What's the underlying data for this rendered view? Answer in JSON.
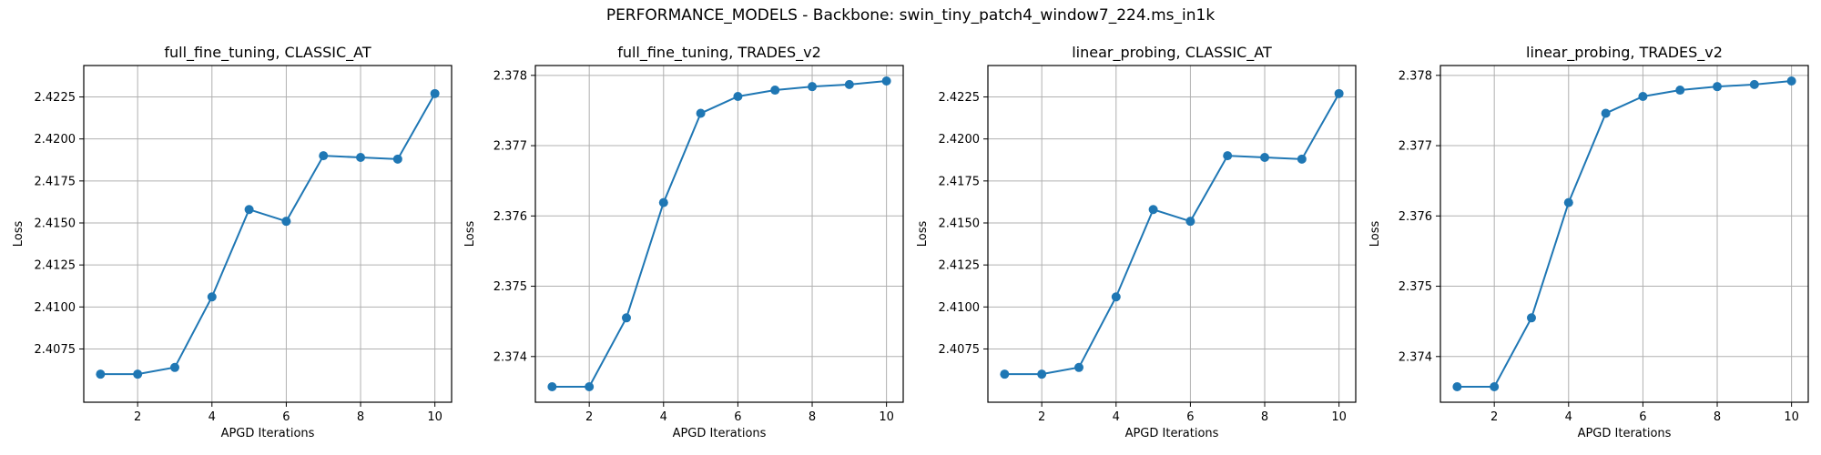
{
  "figure": {
    "title": "PERFORMANCE_MODELS - Backbone: swin_tiny_patch4_window7_224.ms_in1k"
  },
  "colors": {
    "line": "#1f77b4",
    "grid": "#b0b0b0",
    "axes": "#000000"
  },
  "chart_data": [
    {
      "type": "line",
      "title": "full_fine_tuning, CLASSIC_AT",
      "xlabel": "APGD Iterations",
      "ylabel": "Loss",
      "x": [
        1,
        2,
        3,
        4,
        5,
        6,
        7,
        8,
        9,
        10
      ],
      "series": [
        {
          "values": [
            2.406,
            2.406,
            2.4064,
            2.4106,
            2.4158,
            2.4151,
            2.419,
            2.4189,
            2.4188,
            2.4227
          ]
        }
      ],
      "xlim": [
        0.55,
        10.45
      ],
      "ylim": [
        2.40433,
        2.42437
      ],
      "xticks": [
        2,
        4,
        6,
        8,
        10
      ],
      "yticks": [
        2.4075,
        2.41,
        2.4125,
        2.415,
        2.4175,
        2.42,
        2.4225
      ],
      "ytick_labels": [
        "2.4075",
        "2.4100",
        "2.4125",
        "2.4150",
        "2.4175",
        "2.4200",
        "2.4225"
      ],
      "grid": true,
      "marker": "circle"
    },
    {
      "type": "line",
      "title": "full_fine_tuning, TRADES_v2",
      "xlabel": "APGD Iterations",
      "ylabel": "Loss",
      "x": [
        1,
        2,
        3,
        4,
        5,
        6,
        7,
        8,
        9,
        10
      ],
      "series": [
        {
          "values": [
            2.37357,
            2.37357,
            2.37455,
            2.37619,
            2.37746,
            2.3777,
            2.37779,
            2.37784,
            2.37787,
            2.37792
          ]
        }
      ],
      "xlim": [
        0.55,
        10.45
      ],
      "ylim": [
        2.37335,
        2.37814
      ],
      "xticks": [
        2,
        4,
        6,
        8,
        10
      ],
      "yticks": [
        2.374,
        2.375,
        2.376,
        2.377,
        2.378
      ],
      "ytick_labels": [
        "2.374",
        "2.375",
        "2.376",
        "2.377",
        "2.378"
      ],
      "grid": true,
      "marker": "circle"
    },
    {
      "type": "line",
      "title": "linear_probing, CLASSIC_AT",
      "xlabel": "APGD Iterations",
      "ylabel": "Loss",
      "x": [
        1,
        2,
        3,
        4,
        5,
        6,
        7,
        8,
        9,
        10
      ],
      "series": [
        {
          "values": [
            2.406,
            2.406,
            2.4064,
            2.4106,
            2.4158,
            2.4151,
            2.419,
            2.4189,
            2.4188,
            2.4227
          ]
        }
      ],
      "xlim": [
        0.55,
        10.45
      ],
      "ylim": [
        2.40433,
        2.42437
      ],
      "xticks": [
        2,
        4,
        6,
        8,
        10
      ],
      "yticks": [
        2.4075,
        2.41,
        2.4125,
        2.415,
        2.4175,
        2.42,
        2.4225
      ],
      "ytick_labels": [
        "2.4075",
        "2.4100",
        "2.4125",
        "2.4150",
        "2.4175",
        "2.4200",
        "2.4225"
      ],
      "grid": true,
      "marker": "circle"
    },
    {
      "type": "line",
      "title": "linear_probing, TRADES_v2",
      "xlabel": "APGD Iterations",
      "ylabel": "Loss",
      "x": [
        1,
        2,
        3,
        4,
        5,
        6,
        7,
        8,
        9,
        10
      ],
      "series": [
        {
          "values": [
            2.37357,
            2.37357,
            2.37455,
            2.37619,
            2.37746,
            2.3777,
            2.37779,
            2.37784,
            2.37787,
            2.37792
          ]
        }
      ],
      "xlim": [
        0.55,
        10.45
      ],
      "ylim": [
        2.37335,
        2.37814
      ],
      "xticks": [
        2,
        4,
        6,
        8,
        10
      ],
      "yticks": [
        2.374,
        2.375,
        2.376,
        2.377,
        2.378
      ],
      "ytick_labels": [
        "2.374",
        "2.375",
        "2.376",
        "2.377",
        "2.378"
      ],
      "grid": true,
      "marker": "circle"
    }
  ]
}
